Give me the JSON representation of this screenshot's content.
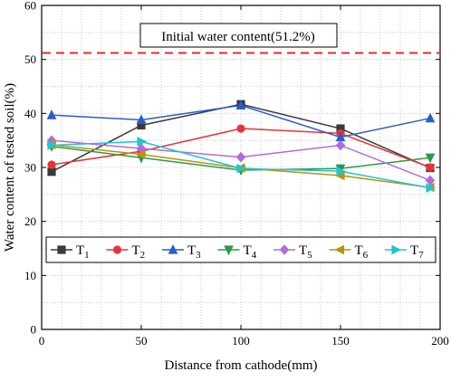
{
  "chart_data": {
    "type": "line",
    "xlabel": "Distance from cathode(mm)",
    "ylabel": "Water content of tested soil(%)",
    "xlim": [
      0,
      200
    ],
    "ylim": [
      0,
      60
    ],
    "x_ticks": [
      0,
      50,
      100,
      150,
      200
    ],
    "y_ticks": [
      0,
      10,
      20,
      30,
      40,
      50,
      60
    ],
    "grid": true,
    "legend_position": "lower-center",
    "reference_line": {
      "value": 51.2,
      "label": "Initial water content(51.2%)",
      "color": "#e8292b",
      "style": "dashed"
    },
    "x": [
      5,
      50,
      100,
      150,
      195
    ],
    "series": [
      {
        "name": "T",
        "sub": "1",
        "color": "#3a3a3a",
        "marker": "square",
        "values": [
          29.2,
          37.8,
          41.7,
          37.2,
          29.9
        ]
      },
      {
        "name": "T",
        "sub": "2",
        "color": "#e8333a",
        "marker": "circle",
        "values": [
          30.5,
          33.0,
          37.2,
          36.3,
          30.0
        ]
      },
      {
        "name": "T",
        "sub": "3",
        "color": "#2b5cc8",
        "marker": "triangle-up",
        "values": [
          39.7,
          38.8,
          41.5,
          35.6,
          39.1
        ]
      },
      {
        "name": "T",
        "sub": "4",
        "color": "#2a9a4a",
        "marker": "triangle-down",
        "values": [
          33.9,
          31.8,
          29.5,
          29.8,
          31.8
        ]
      },
      {
        "name": "T",
        "sub": "5",
        "color": "#b26ae0",
        "marker": "diamond",
        "values": [
          35.0,
          33.5,
          31.9,
          34.1,
          27.6
        ]
      },
      {
        "name": "T",
        "sub": "6",
        "color": "#b8940a",
        "marker": "triangle-left",
        "values": [
          34.2,
          32.4,
          29.9,
          28.5,
          26.3
        ]
      },
      {
        "name": "T",
        "sub": "7",
        "color": "#1fc6cf",
        "marker": "triangle-right",
        "values": [
          34.1,
          34.8,
          29.8,
          29.3,
          26.2
        ]
      }
    ]
  }
}
